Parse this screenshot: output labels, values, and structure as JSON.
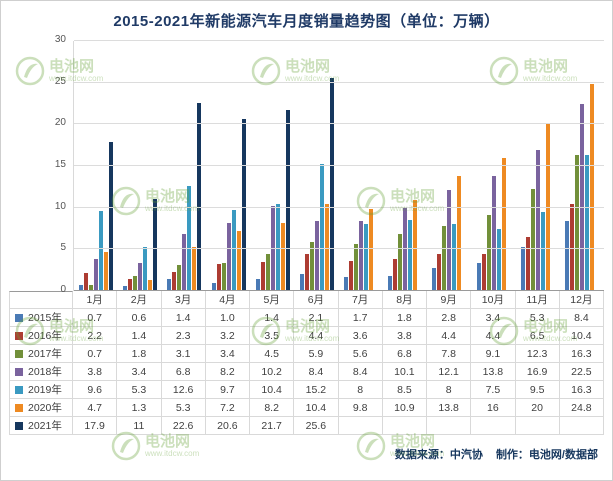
{
  "title": "2015-2021年新能源汽车月度销量趋势图（单位：万辆）",
  "watermark": {
    "brand": "电池网",
    "url": "www.itdcw.com"
  },
  "footer": {
    "source": "数据来源：中汽协",
    "credit": "制作：电池网/数据部"
  },
  "chart_data": {
    "type": "bar",
    "title": "2015-2021年新能源汽车月度销量趋势图（单位：万辆）",
    "unit": "万辆",
    "categories": [
      "1月",
      "2月",
      "3月",
      "4月",
      "5月",
      "6月",
      "7月",
      "8月",
      "9月",
      "10月",
      "11月",
      "12月"
    ],
    "ylim": [
      0,
      30
    ],
    "yticks": [
      0,
      5,
      10,
      15,
      20,
      25,
      30
    ],
    "grid": true,
    "legend_position": "table-left",
    "series": [
      {
        "name": "2015年",
        "color": "#4a7ab5",
        "values": [
          0.7,
          0.6,
          1.4,
          1.0,
          1.4,
          2.1,
          1.7,
          1.8,
          2.8,
          3.4,
          5.3,
          8.4
        ],
        "labels": [
          "0.7",
          "0.6",
          "1.4",
          "1.0",
          "1.4",
          "2.1",
          "1.7",
          "1.8",
          "2.8",
          "3.4",
          "5.3",
          "8.4"
        ]
      },
      {
        "name": "2016年",
        "color": "#ad3c32",
        "values": [
          2.2,
          1.4,
          2.3,
          3.2,
          3.5,
          4.4,
          3.6,
          3.8,
          4.4,
          4.4,
          6.5,
          10.4
        ],
        "labels": [
          "2.2",
          "1.4",
          "2.3",
          "3.2",
          "3.5",
          "4.4",
          "3.6",
          "3.8",
          "4.4",
          "4.4",
          "6.5",
          "10.4"
        ]
      },
      {
        "name": "2017年",
        "color": "#72903a",
        "values": [
          0.7,
          1.8,
          3.1,
          3.4,
          4.5,
          5.9,
          5.6,
          6.8,
          7.8,
          9.1,
          12.3,
          16.3
        ],
        "labels": [
          "0.7",
          "1.8",
          "3.1",
          "3.4",
          "4.5",
          "5.9",
          "5.6",
          "6.8",
          "7.8",
          "9.1",
          "12.3",
          "16.3"
        ]
      },
      {
        "name": "2018年",
        "color": "#7a639e",
        "values": [
          3.8,
          3.4,
          6.8,
          8.2,
          10.2,
          8.4,
          8.4,
          10.1,
          12.1,
          13.8,
          16.9,
          22.5
        ],
        "labels": [
          "3.8",
          "3.4",
          "6.8",
          "8.2",
          "10.2",
          "8.4",
          "8.4",
          "10.1",
          "12.1",
          "13.8",
          "16.9",
          "22.5"
        ]
      },
      {
        "name": "2019年",
        "color": "#3a9ac1",
        "values": [
          9.6,
          5.3,
          12.6,
          9.7,
          10.4,
          15.2,
          8,
          8.5,
          8,
          7.5,
          9.5,
          16.3
        ],
        "labels": [
          "9.6",
          "5.3",
          "12.6",
          "9.7",
          "10.4",
          "15.2",
          "8",
          "8.5",
          "8",
          "7.5",
          "9.5",
          "16.3"
        ]
      },
      {
        "name": "2020年",
        "color": "#ee8a22",
        "values": [
          4.7,
          1.3,
          5.3,
          7.2,
          8.2,
          10.4,
          9.8,
          10.9,
          13.8,
          16,
          20,
          24.8
        ],
        "labels": [
          "4.7",
          "1.3",
          "5.3",
          "7.2",
          "8.2",
          "10.4",
          "9.8",
          "10.9",
          "13.8",
          "16",
          "20",
          "24.8"
        ]
      },
      {
        "name": "2021年",
        "color": "#16375e",
        "values": [
          17.9,
          11,
          22.6,
          20.6,
          21.7,
          25.6,
          null,
          null,
          null,
          null,
          null,
          null
        ],
        "labels": [
          "17.9",
          "11",
          "22.6",
          "20.6",
          "21.7",
          "25.6",
          "",
          "",
          "",
          "",
          "",
          ""
        ]
      }
    ]
  }
}
